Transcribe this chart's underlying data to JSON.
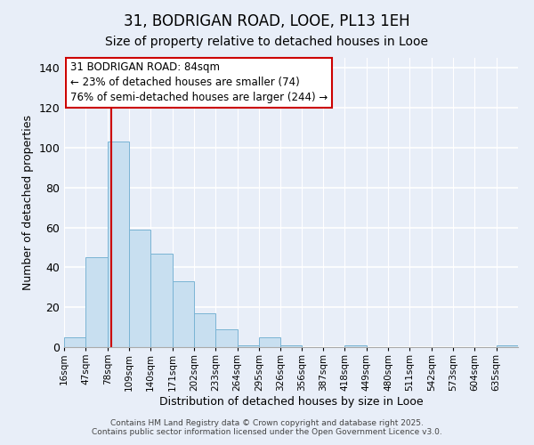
{
  "title": "31, BODRIGAN ROAD, LOOE, PL13 1EH",
  "subtitle": "Size of property relative to detached houses in Looe",
  "xlabel": "Distribution of detached houses by size in Looe",
  "ylabel": "Number of detached properties",
  "bar_labels": [
    "16sqm",
    "47sqm",
    "78sqm",
    "109sqm",
    "140sqm",
    "171sqm",
    "202sqm",
    "233sqm",
    "264sqm",
    "295sqm",
    "326sqm",
    "356sqm",
    "387sqm",
    "418sqm",
    "449sqm",
    "480sqm",
    "511sqm",
    "542sqm",
    "573sqm",
    "604sqm",
    "635sqm"
  ],
  "bar_values": [
    5,
    45,
    103,
    59,
    47,
    33,
    17,
    9,
    1,
    5,
    1,
    0,
    0,
    1,
    0,
    0,
    0,
    0,
    0,
    0,
    1
  ],
  "bar_color": "#c8dff0",
  "bar_edge_color": "#7ab4d4",
  "ylim": [
    0,
    145
  ],
  "yticks": [
    0,
    20,
    40,
    60,
    80,
    100,
    120,
    140
  ],
  "red_line_x": 84,
  "bin_edges": [
    16,
    47,
    78,
    109,
    140,
    171,
    202,
    233,
    264,
    295,
    326,
    356,
    387,
    418,
    449,
    480,
    511,
    542,
    573,
    604,
    635,
    666
  ],
  "annotation_title": "31 BODRIGAN ROAD: 84sqm",
  "annotation_line1": "← 23% of detached houses are smaller (74)",
  "annotation_line2": "76% of semi-detached houses are larger (244) →",
  "annotation_box_color": "#ffffff",
  "annotation_box_edge": "#cc0000",
  "footer1": "Contains HM Land Registry data © Crown copyright and database right 2025.",
  "footer2": "Contains public sector information licensed under the Open Government Licence v3.0.",
  "bg_color": "#e8eef8",
  "title_fontsize": 12,
  "subtitle_fontsize": 10,
  "annotation_fontsize": 8.5,
  "tick_fontsize": 7.5,
  "ylabel_fontsize": 9,
  "xlabel_fontsize": 9
}
